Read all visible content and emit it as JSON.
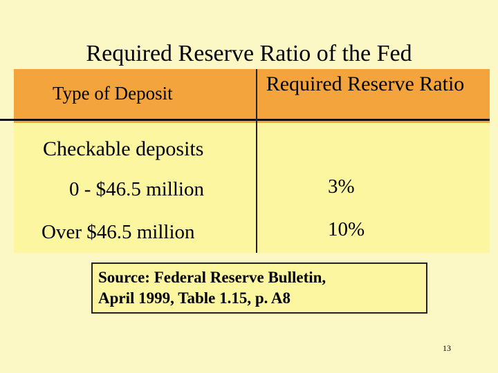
{
  "slide": {
    "title": "Required Reserve Ratio of the Fed",
    "page_number": "13"
  },
  "table": {
    "headers": [
      "Type of Deposit",
      "Required Reserve Ratio"
    ],
    "group_label": "Checkable deposits",
    "rows": [
      {
        "label": "0 - $46.5 million",
        "value": "3%"
      },
      {
        "label": "Over $46.5 million",
        "value": "10%"
      }
    ]
  },
  "source": {
    "line1": "Source: Federal Reserve Bulletin,",
    "line2": "April 1999, Table 1.15, p. A8"
  },
  "colors": {
    "background": "#fbf8c6",
    "table_body": "#fdf6a0",
    "header_band": "#f4a43c"
  }
}
